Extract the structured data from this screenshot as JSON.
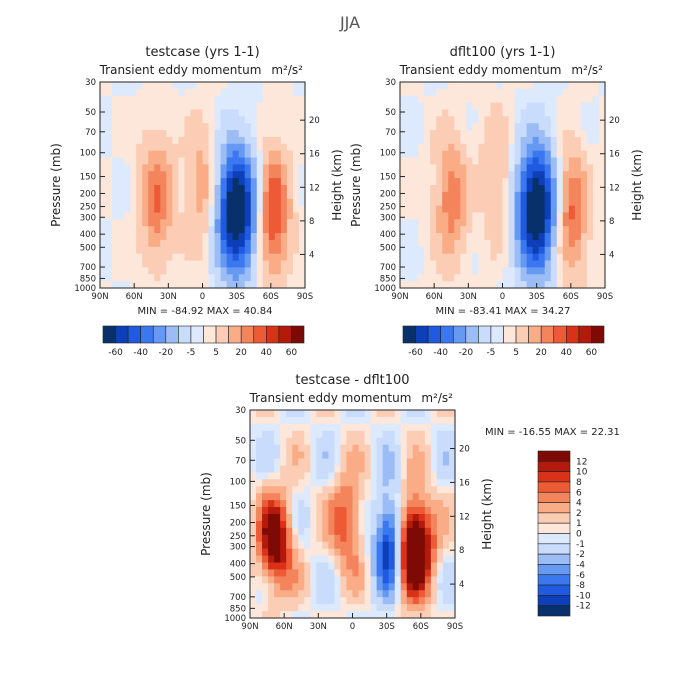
{
  "title": "JJA",
  "colors": {
    "blues": [
      "#08306b",
      "#0c3fb8",
      "#1f5ae0",
      "#3b78f0",
      "#6699f2",
      "#9bbcf5",
      "#c9dcfb",
      "#ddeafd"
    ],
    "reds": [
      "#fde6da",
      "#fccdb5",
      "#f9ac86",
      "#f4845c",
      "#ec5a36",
      "#d93218",
      "#b31a0c",
      "#7d0a05"
    ]
  },
  "chart_data": [
    {
      "type": "heatmap",
      "title": "testcase (yrs 1-1)",
      "subtitle": "Transient eddy momentum",
      "units": "m²/s²",
      "ylabel": "Pressure (mb)",
      "ylabel_right": "Height (km)",
      "x_ticks": [
        "90N",
        "60N",
        "30N",
        "0",
        "30S",
        "60S",
        "90S"
      ],
      "y_ticks": [
        "30",
        "50",
        "70",
        "100",
        "150",
        "200",
        "250",
        "300",
        "400",
        "500",
        "700",
        "850",
        "1000"
      ],
      "y_right_ticks": [
        "20",
        "16",
        "12",
        "8",
        "4"
      ],
      "min_label": "MIN = -84.92",
      "max_label": "MAX = 40.84",
      "min": -84.92,
      "max": 40.84,
      "colorbar_labels": [
        "-60",
        "-40",
        "-20",
        "-5",
        "5",
        "20",
        "40",
        "60"
      ],
      "features": [
        {
          "lat": -30,
          "p": 270,
          "value": -84.9
        },
        {
          "lat": 40,
          "p": 220,
          "value": 30
        },
        {
          "lat": -62,
          "p": 280,
          "value": 40.8
        },
        {
          "lat": 0,
          "p": 180,
          "value": 20
        }
      ]
    },
    {
      "type": "heatmap",
      "title": "dflt100 (yrs 1-1)",
      "subtitle": "Transient eddy momentum",
      "units": "m²/s²",
      "ylabel": "Pressure (mb)",
      "ylabel_right": "Height (km)",
      "x_ticks": [
        "90N",
        "60N",
        "30N",
        "0",
        "30S",
        "60S",
        "90S"
      ],
      "y_ticks": [
        "30",
        "50",
        "70",
        "100",
        "150",
        "200",
        "250",
        "300",
        "400",
        "500",
        "700",
        "850",
        "1000"
      ],
      "y_right_ticks": [
        "20",
        "16",
        "12",
        "8",
        "4"
      ],
      "min_label": "MIN = -83.41",
      "max_label": "MAX = 34.27",
      "min": -83.41,
      "max": 34.27,
      "colorbar_labels": [
        "-60",
        "-40",
        "-20",
        "-5",
        "5",
        "20",
        "40",
        "60"
      ],
      "features": [
        {
          "lat": -30,
          "p": 260,
          "value": -83.4
        },
        {
          "lat": 45,
          "p": 220,
          "value": 28
        },
        {
          "lat": -60,
          "p": 280,
          "value": 34.3
        },
        {
          "lat": 5,
          "p": 150,
          "value": 15
        }
      ]
    },
    {
      "type": "heatmap",
      "title": "testcase - dflt100",
      "subtitle": "Transient eddy momentum",
      "units": "m²/s²",
      "ylabel": "Pressure (mb)",
      "ylabel_right": "Height (km)",
      "x_ticks": [
        "90N",
        "60N",
        "30N",
        "0",
        "30S",
        "60S",
        "90S"
      ],
      "y_ticks": [
        "30",
        "50",
        "70",
        "100",
        "150",
        "200",
        "250",
        "300",
        "400",
        "500",
        "700",
        "850",
        "1000"
      ],
      "y_right_ticks": [
        "20",
        "16",
        "12",
        "8",
        "4"
      ],
      "min_label": "MIN = -16.55",
      "max_label": "MAX =   22.31",
      "min": -16.55,
      "max": 22.31,
      "colorbar_labels": [
        "12",
        "10",
        "8",
        "6",
        "4",
        "2",
        "1",
        "0",
        "-1",
        "-2",
        "-4",
        "-6",
        "-8",
        "-10",
        "-12"
      ],
      "features": [
        {
          "lat": -52,
          "p": 300,
          "value": 22.3
        },
        {
          "lat": 68,
          "p": 280,
          "value": 14
        },
        {
          "lat": -35,
          "p": 280,
          "value": -16.6
        },
        {
          "lat": 5,
          "p": 200,
          "value": 8
        }
      ]
    }
  ]
}
